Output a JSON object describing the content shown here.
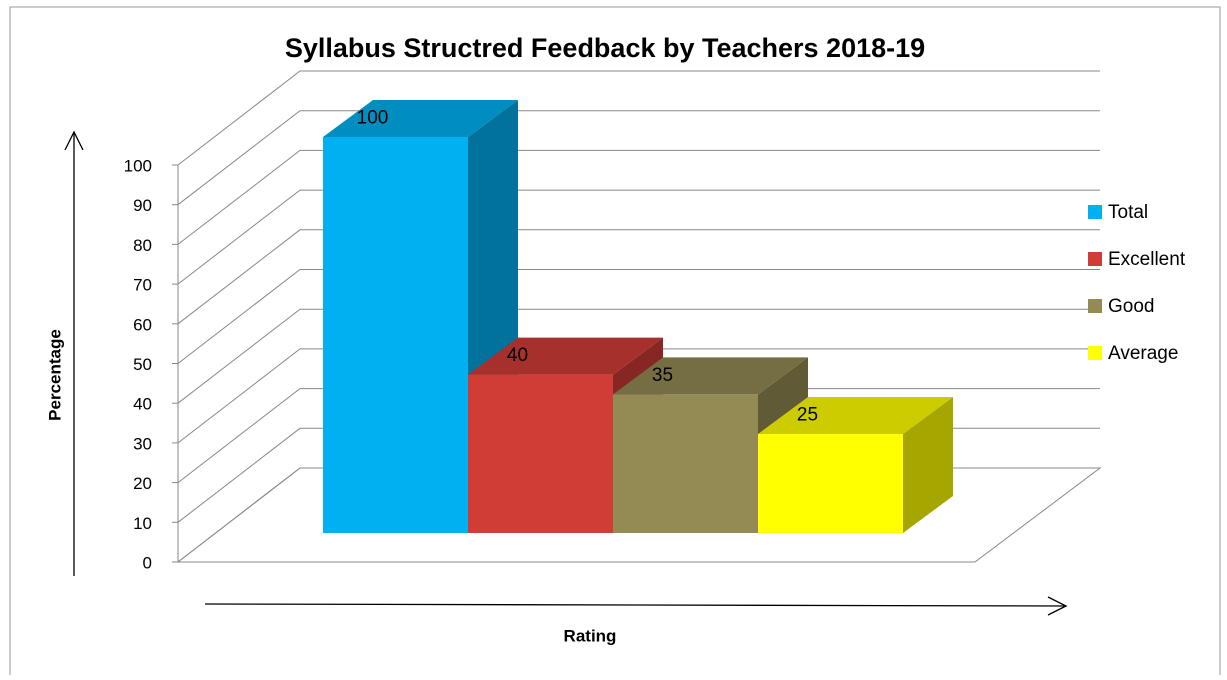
{
  "chart_data": {
    "type": "bar3d",
    "title": "Syllabus Structred Feedback by Teachers 2018-19",
    "x_label": "Rating",
    "y_label": "Percentage",
    "categories": [
      null
    ],
    "series": [
      {
        "name": "Total",
        "color": "#00b0f0",
        "values": [
          100
        ]
      },
      {
        "name": "Excellent",
        "color": "#d03c36",
        "values": [
          40
        ]
      },
      {
        "name": "Good",
        "color": "#948a54",
        "values": [
          35
        ]
      },
      {
        "name": "Average",
        "color": "#ffff00",
        "values": [
          25
        ]
      }
    ],
    "ylim": [
      0,
      100
    ],
    "yticks": [
      0,
      10,
      20,
      30,
      40,
      50,
      60,
      70,
      80,
      90,
      100
    ],
    "grid": true,
    "legend": "right"
  }
}
